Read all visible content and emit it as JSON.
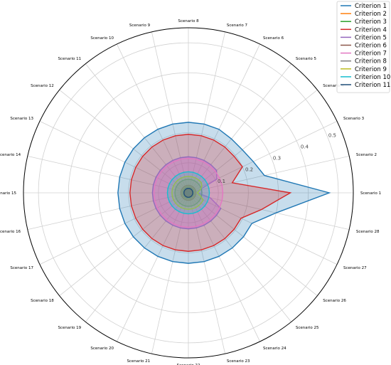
{
  "chart_data": {
    "type": "radar",
    "categories": [
      "Scenario 1",
      "Scenario 2",
      "Scenario 3",
      "Scenario 4",
      "Scenario 5",
      "Scenario 6",
      "Scenario 7",
      "Scenario 8",
      "Scenario 9",
      "Scenario 10",
      "Scenario 11",
      "Scenario 12",
      "Scenario 13",
      "Scenario 14",
      "Scenario 15",
      "Scenario 16",
      "Scenario 17",
      "Scenario 18",
      "Scenario 19",
      "Scenario 20",
      "Scenario 21",
      "Scenario 22",
      "Scenario 23",
      "Scenario 24",
      "Scenario 25",
      "Scenario 26",
      "Scenario 27",
      "Scenario 28"
    ],
    "radial_ticks": [
      "0.1",
      "0.2",
      "0.3",
      "0.4",
      "0.5"
    ],
    "radial_tick_values": [
      0.1,
      0.2,
      0.3,
      0.4,
      0.5
    ],
    "rlim": [
      0,
      0.55
    ],
    "grid": true,
    "legend_position": "top-right",
    "series": [
      {
        "name": "Criterion 1",
        "color": "#1f77b4",
        "values": [
          0.47,
          0.26,
          0.24,
          0.23,
          0.23,
          0.235,
          0.235,
          0.235,
          0.235,
          0.235,
          0.235,
          0.235,
          0.235,
          0.235,
          0.235,
          0.235,
          0.235,
          0.235,
          0.235,
          0.235,
          0.235,
          0.235,
          0.235,
          0.235,
          0.235,
          0.235,
          0.235,
          0.3
        ]
      },
      {
        "name": "Criterion 2",
        "color": "#ff7f0e",
        "values": [
          0.012,
          0.012,
          0.012,
          0.012,
          0.012,
          0.012,
          0.012,
          0.012,
          0.012,
          0.012,
          0.012,
          0.012,
          0.012,
          0.012,
          0.012,
          0.012,
          0.012,
          0.012,
          0.012,
          0.012,
          0.012,
          0.012,
          0.012,
          0.012,
          0.012,
          0.012,
          0.012,
          0.012
        ]
      },
      {
        "name": "Criterion 3",
        "color": "#2ca02c",
        "values": [
          0.02,
          0.02,
          0.02,
          0.02,
          0.02,
          0.02,
          0.02,
          0.02,
          0.02,
          0.02,
          0.02,
          0.02,
          0.02,
          0.02,
          0.02,
          0.02,
          0.02,
          0.02,
          0.02,
          0.02,
          0.02,
          0.02,
          0.02,
          0.02,
          0.02,
          0.02,
          0.02,
          0.02
        ]
      },
      {
        "name": "Criterion 4",
        "color": "#d62728",
        "values": [
          0.34,
          0.15,
          0.2,
          0.195,
          0.195,
          0.195,
          0.195,
          0.195,
          0.195,
          0.195,
          0.195,
          0.195,
          0.195,
          0.195,
          0.195,
          0.195,
          0.195,
          0.195,
          0.195,
          0.195,
          0.195,
          0.195,
          0.195,
          0.195,
          0.195,
          0.195,
          0.195,
          0.25
        ]
      },
      {
        "name": "Criterion 5",
        "color": "#9467bd",
        "values": [
          0.03,
          0.035,
          0.105,
          0.12,
          0.12,
          0.12,
          0.12,
          0.12,
          0.12,
          0.12,
          0.12,
          0.12,
          0.12,
          0.12,
          0.12,
          0.12,
          0.12,
          0.12,
          0.12,
          0.12,
          0.12,
          0.12,
          0.12,
          0.12,
          0.12,
          0.12,
          0.12,
          0.075
        ]
      },
      {
        "name": "Criterion 6",
        "color": "#8c564b",
        "values": [
          0.025,
          0.025,
          0.025,
          0.025,
          0.025,
          0.025,
          0.025,
          0.025,
          0.025,
          0.025,
          0.025,
          0.025,
          0.025,
          0.025,
          0.025,
          0.025,
          0.025,
          0.025,
          0.025,
          0.025,
          0.025,
          0.025,
          0.025,
          0.025,
          0.025,
          0.025,
          0.025,
          0.025
        ]
      },
      {
        "name": "Criterion 7",
        "color": "#e377c2",
        "values": [
          0.115,
          0.115,
          0.115,
          0.115,
          0.115,
          0.115,
          0.115,
          0.115,
          0.115,
          0.115,
          0.115,
          0.115,
          0.115,
          0.115,
          0.115,
          0.115,
          0.115,
          0.115,
          0.115,
          0.115,
          0.115,
          0.115,
          0.115,
          0.115,
          0.115,
          0.115,
          0.115,
          0.115
        ]
      },
      {
        "name": "Criterion 8",
        "color": "#7f7f7f",
        "values": [
          0.045,
          0.045,
          0.045,
          0.045,
          0.045,
          0.045,
          0.045,
          0.045,
          0.045,
          0.045,
          0.045,
          0.045,
          0.045,
          0.045,
          0.045,
          0.045,
          0.045,
          0.045,
          0.045,
          0.045,
          0.045,
          0.045,
          0.045,
          0.045,
          0.045,
          0.045,
          0.045,
          0.045
        ]
      },
      {
        "name": "Criterion 9",
        "color": "#bcbd22",
        "values": [
          0.03,
          0.04,
          0.05,
          0.055,
          0.055,
          0.055,
          0.055,
          0.055,
          0.055,
          0.055,
          0.055,
          0.055,
          0.055,
          0.055,
          0.055,
          0.055,
          0.055,
          0.055,
          0.055,
          0.055,
          0.055,
          0.055,
          0.055,
          0.055,
          0.055,
          0.055,
          0.055,
          0.04
        ]
      },
      {
        "name": "Criterion 10",
        "color": "#17becf",
        "values": [
          0.07,
          0.07,
          0.07,
          0.07,
          0.07,
          0.07,
          0.07,
          0.07,
          0.07,
          0.07,
          0.07,
          0.07,
          0.07,
          0.07,
          0.07,
          0.07,
          0.07,
          0.07,
          0.07,
          0.07,
          0.07,
          0.07,
          0.07,
          0.07,
          0.07,
          0.07,
          0.07,
          0.07
        ]
      },
      {
        "name": "Criterion 11",
        "color": "#1f4e79",
        "values": [
          0.015,
          0.015,
          0.015,
          0.015,
          0.015,
          0.015,
          0.015,
          0.015,
          0.015,
          0.015,
          0.015,
          0.015,
          0.015,
          0.015,
          0.015,
          0.015,
          0.015,
          0.015,
          0.015,
          0.015,
          0.015,
          0.015,
          0.015,
          0.015,
          0.015,
          0.015,
          0.015,
          0.015
        ]
      }
    ]
  }
}
